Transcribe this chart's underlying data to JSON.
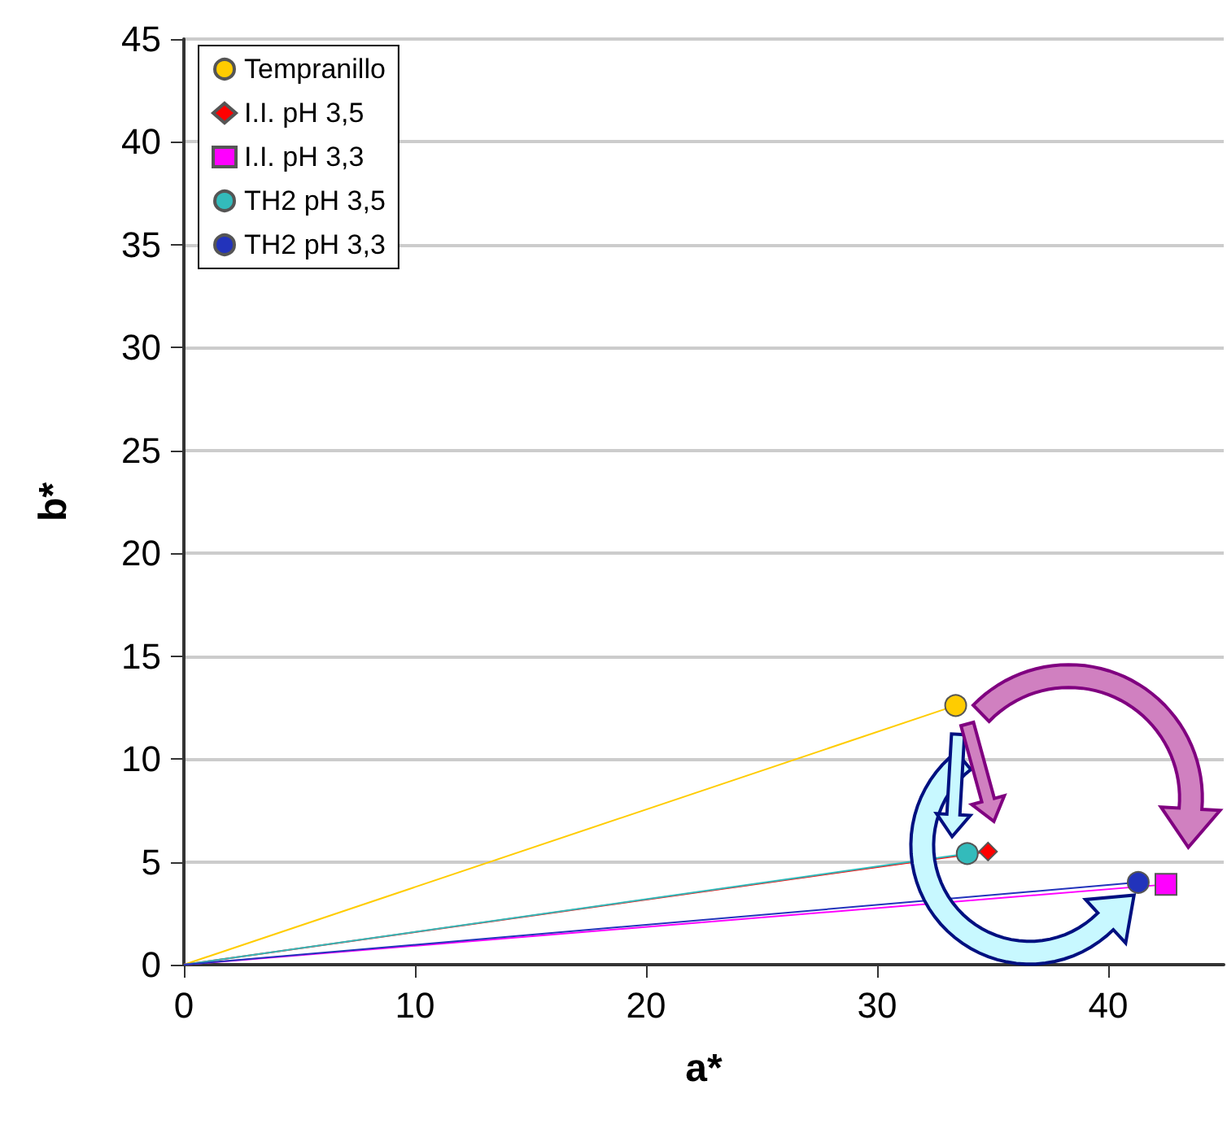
{
  "chart_data": {
    "type": "line",
    "xlabel": "a*",
    "ylabel": "b*",
    "xlim": [
      0,
      45
    ],
    "xticks": [
      0,
      10,
      20,
      30,
      40
    ],
    "ylim": [
      0,
      45
    ],
    "yticks": [
      0,
      5,
      10,
      15,
      20,
      25,
      30,
      35,
      40,
      45
    ],
    "grid": "y",
    "legend": "top left",
    "line_style": "solid",
    "series": [
      {
        "name": "Tempranillo",
        "color": "#ffcc00",
        "marker": "circle",
        "x": [
          0,
          33.4
        ],
        "values": [
          0,
          12.6
        ]
      },
      {
        "name": "I.I. pH 3,5",
        "color": "#ff0000",
        "marker": "diamond",
        "x": [
          0,
          34.8
        ],
        "values": [
          0,
          5.5
        ]
      },
      {
        "name": "I.I. pH 3,3",
        "color": "#ff00ff",
        "marker": "square",
        "x": [
          0,
          42.5
        ],
        "values": [
          0,
          3.9
        ]
      },
      {
        "name": "TH2 pH 3,5",
        "color": "#33bbbb",
        "marker": "circle",
        "x": [
          0,
          33.9
        ],
        "values": [
          0,
          5.4
        ]
      },
      {
        "name": "TH2 pH 3,3",
        "color": "#2233bb",
        "marker": "circle",
        "x": [
          0,
          41.3
        ],
        "values": [
          0,
          4.0
        ]
      }
    ]
  }
}
